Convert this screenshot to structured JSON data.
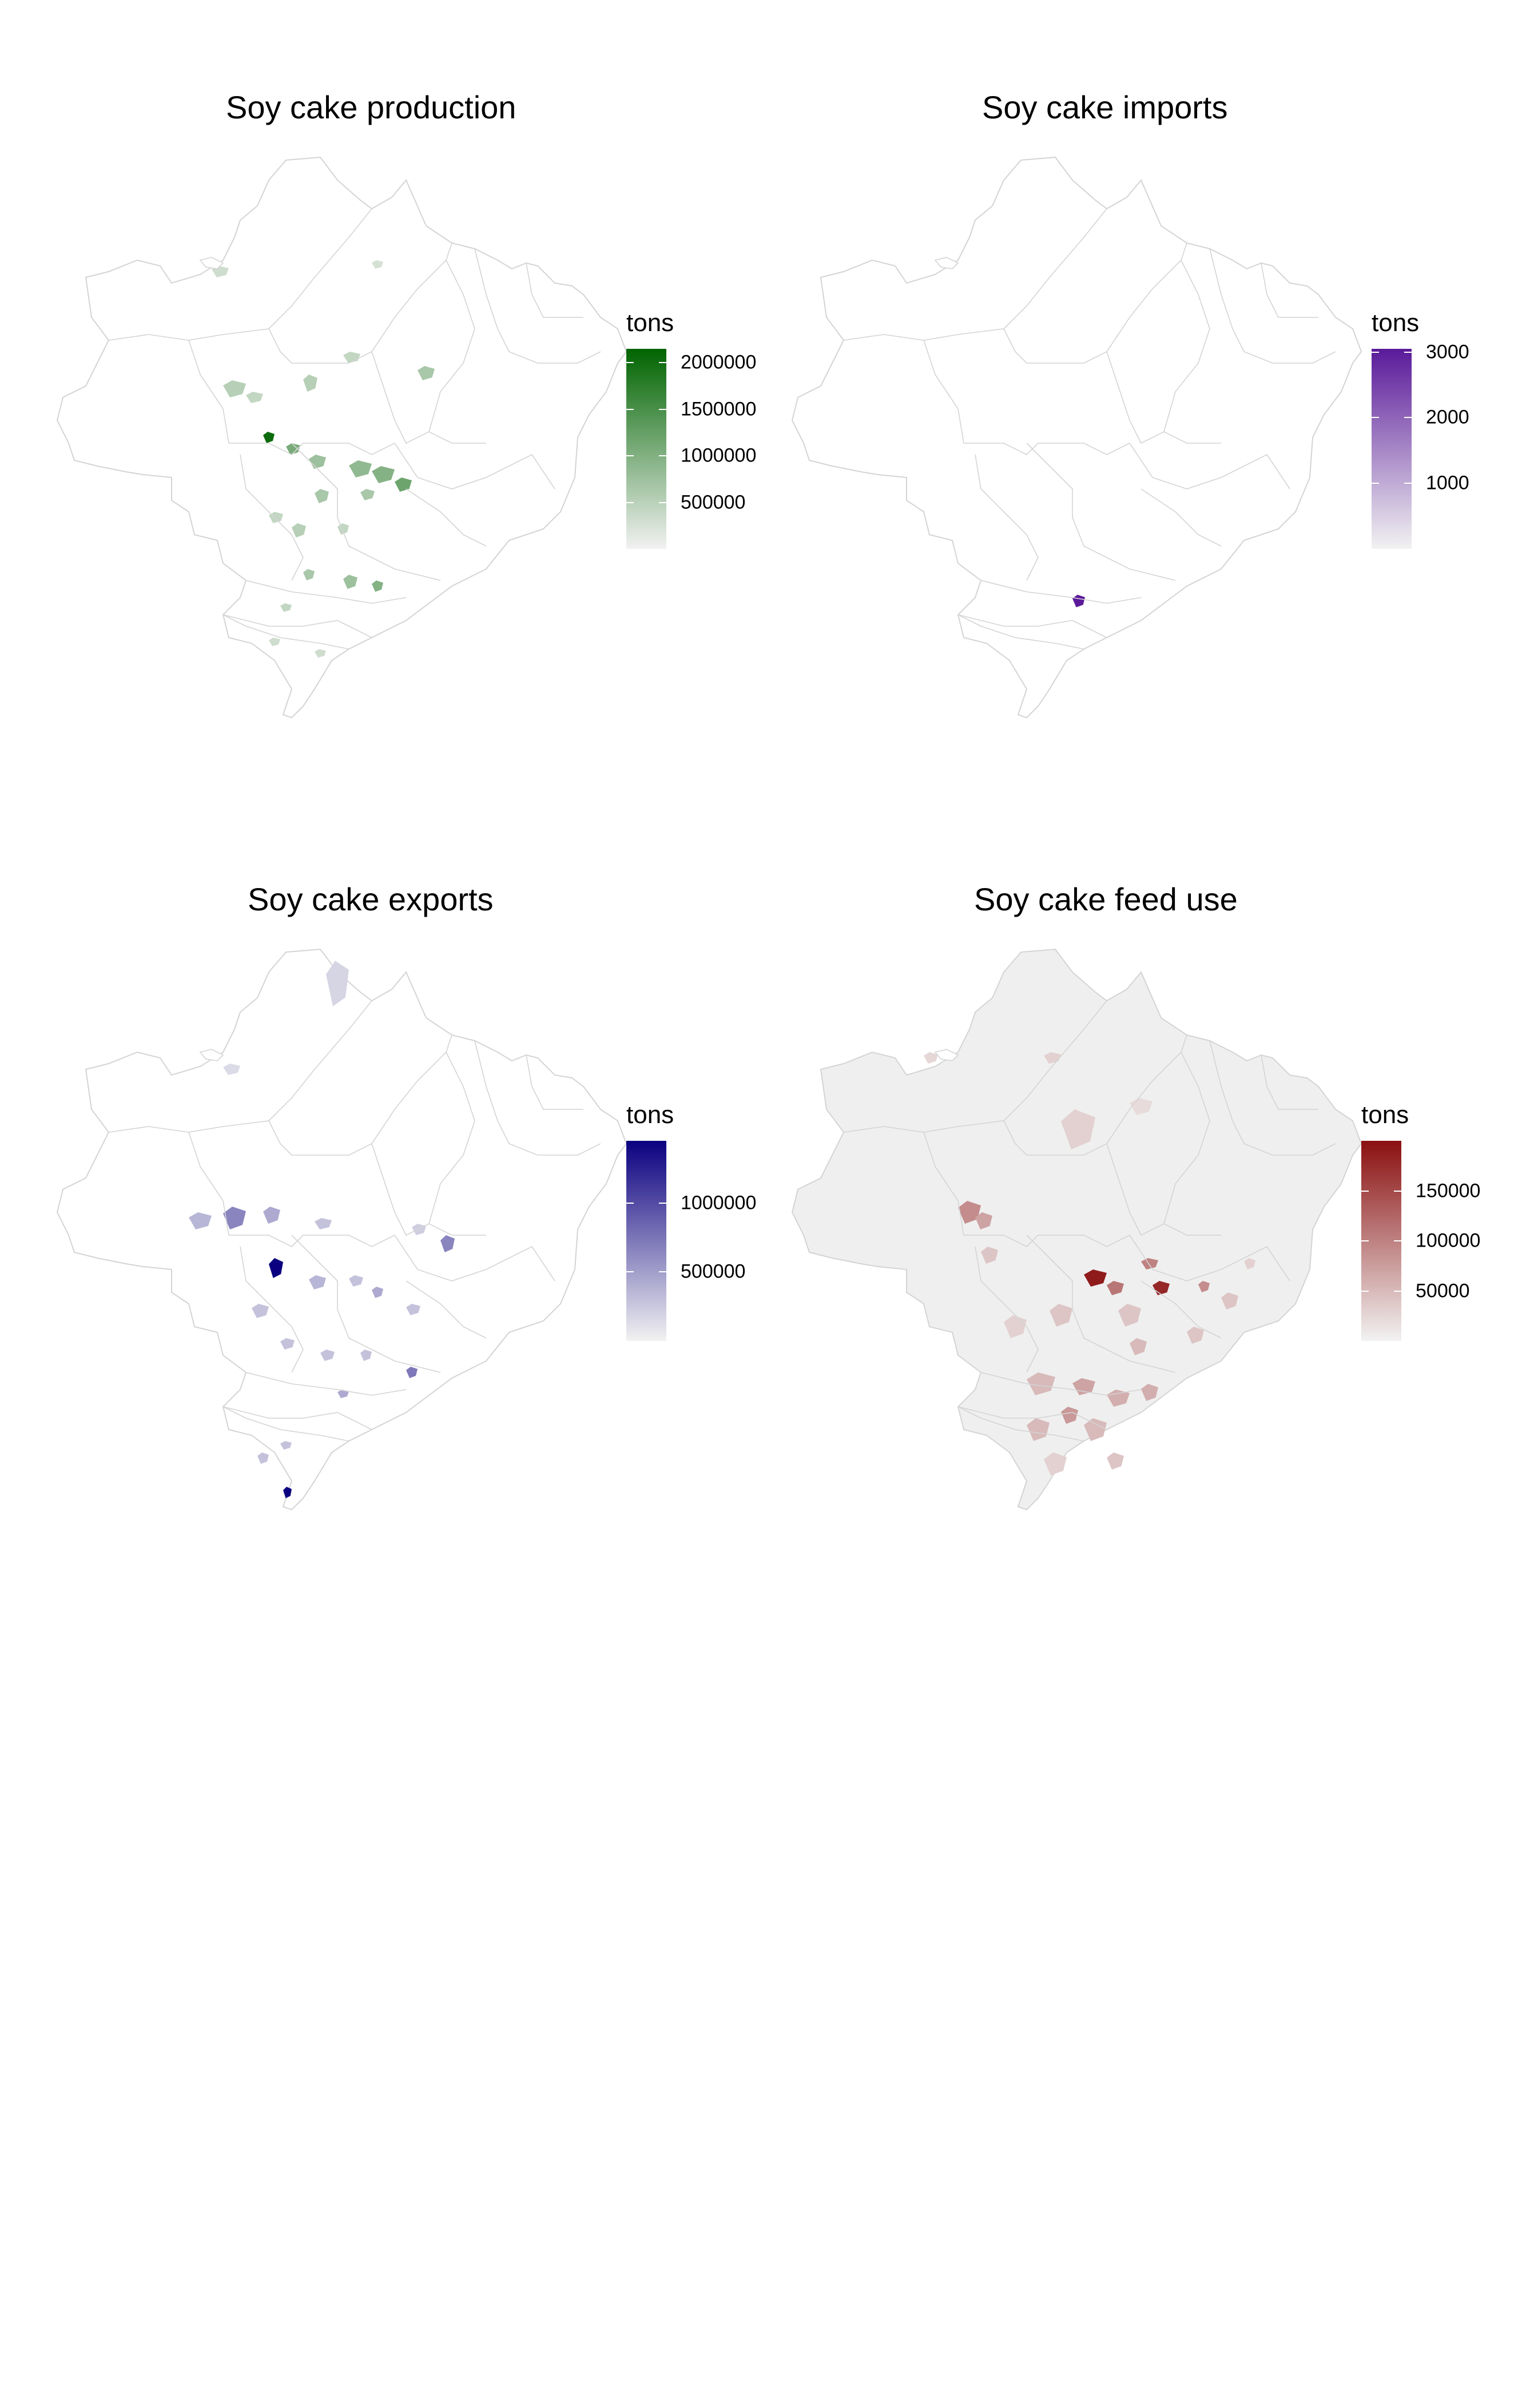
{
  "panels": [
    {
      "id": "production",
      "title": "Soy cake production",
      "legend_title": "tons",
      "color_low": "#f2f2f2",
      "color_high": "#006400",
      "legend_max": 2150000,
      "ticks": [
        {
          "value": 500000,
          "label": "500000"
        },
        {
          "value": 1000000,
          "label": "1000000"
        },
        {
          "value": 1500000,
          "label": "1500000"
        },
        {
          "value": 2000000,
          "label": "2000000"
        }
      ]
    },
    {
      "id": "imports",
      "title": "Soy cake imports",
      "legend_title": "tons",
      "color_low": "#f2f2f2",
      "color_high": "#5a1a9a",
      "legend_max": 3050,
      "ticks": [
        {
          "value": 1000,
          "label": "1000"
        },
        {
          "value": 2000,
          "label": "2000"
        },
        {
          "value": 3000,
          "label": "3000"
        }
      ]
    },
    {
      "id": "exports",
      "title": "Soy cake exports",
      "legend_title": "tons",
      "color_low": "#f2f2f2",
      "color_high": "#0b0080",
      "legend_max": 1450000,
      "ticks": [
        {
          "value": 500000,
          "label": "500000"
        },
        {
          "value": 1000000,
          "label": "1000000"
        }
      ]
    },
    {
      "id": "feed",
      "title": "Soy cake feed use",
      "legend_title": "tons",
      "color_low": "#f2f2f2",
      "color_high": "#8b1010",
      "legend_max": 200000,
      "ticks": [
        {
          "value": 50000,
          "label": "50000"
        },
        {
          "value": 100000,
          "label": "100000"
        },
        {
          "value": 150000,
          "label": "150000"
        }
      ]
    }
  ],
  "map_style": {
    "border_color": "#d4d4d4",
    "empty_fill": "#ffffff",
    "feed_base_fill": "#efefef"
  }
}
